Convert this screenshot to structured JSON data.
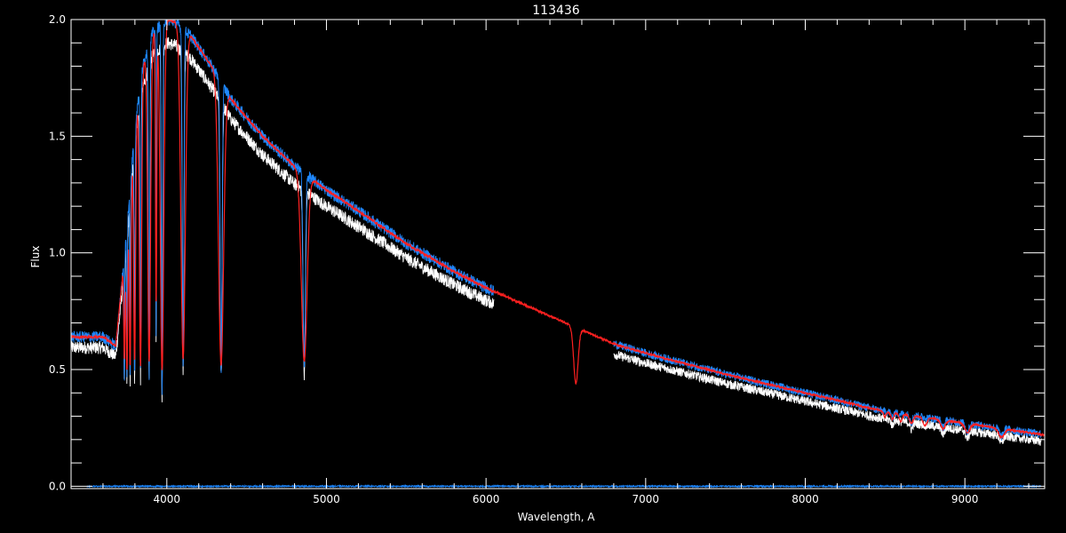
{
  "chart_data": {
    "type": "line",
    "title": "113436",
    "xlabel": "Wavelength, A",
    "ylabel": "Flux",
    "xlim": [
      3400,
      9500
    ],
    "ylim": [
      -0.01,
      2.0
    ],
    "x_ticks": [
      4000,
      5000,
      6000,
      7000,
      8000,
      9000
    ],
    "y_ticks": [
      0.0,
      0.5,
      1.0,
      1.5,
      2.0
    ],
    "x_tick_labels": [
      "4000",
      "5000",
      "6000",
      "7000",
      "8000",
      "9000"
    ],
    "y_tick_labels": [
      "0.0",
      "0.5",
      "1.0",
      "1.5",
      "2.0"
    ],
    "x_minor_step": 200,
    "y_minor_step": 0.1,
    "grid": false,
    "background_color": "#000000",
    "axis_color": "#ffffff",
    "continuum": {
      "x": [
        3400,
        3600,
        3680,
        3750,
        3800,
        3850,
        3900,
        3950,
        4000,
        4050,
        4100,
        4150,
        4200,
        4300,
        4400,
        4600,
        4800,
        5000,
        5200,
        5500,
        5800,
        6000,
        6200,
        6500,
        6800,
        7000,
        7500,
        8000,
        8500,
        9000,
        9500
      ],
      "y": [
        0.64,
        0.64,
        0.6,
        1.1,
        1.55,
        1.8,
        1.93,
        1.97,
        2.0,
        1.99,
        1.96,
        1.93,
        1.88,
        1.78,
        1.66,
        1.5,
        1.37,
        1.27,
        1.18,
        1.04,
        0.92,
        0.85,
        0.79,
        0.7,
        0.61,
        0.57,
        0.48,
        0.4,
        0.32,
        0.27,
        0.22
      ]
    },
    "series": [
      {
        "color": "#ff2020",
        "x_range": [
          3400,
          9500
        ],
        "noise": 0.004,
        "offset": 0.0,
        "absorption_lines": [
          {
            "center": 3734,
            "depth": 0.45,
            "width": 4
          },
          {
            "center": 3750,
            "depth": 0.55,
            "width": 5
          },
          {
            "center": 3770,
            "depth": 0.6,
            "width": 5
          },
          {
            "center": 3798,
            "depth": 0.65,
            "width": 6
          },
          {
            "center": 3835,
            "depth": 0.7,
            "width": 7
          },
          {
            "center": 3889,
            "depth": 0.72,
            "width": 9
          },
          {
            "center": 3933,
            "depth": 0.6,
            "width": 4
          },
          {
            "center": 3970,
            "depth": 0.75,
            "width": 11
          },
          {
            "center": 4102,
            "depth": 0.72,
            "width": 14
          },
          {
            "center": 4340,
            "depth": 0.7,
            "width": 16
          },
          {
            "center": 4861,
            "depth": 0.6,
            "width": 18
          },
          {
            "center": 6563,
            "depth": 0.35,
            "width": 14
          },
          {
            "center": 8498,
            "depth": 0.07,
            "width": 8
          },
          {
            "center": 8545,
            "depth": 0.09,
            "width": 9
          },
          {
            "center": 8598,
            "depth": 0.1,
            "width": 10
          },
          {
            "center": 8665,
            "depth": 0.11,
            "width": 11
          },
          {
            "center": 8750,
            "depth": 0.12,
            "width": 12
          },
          {
            "center": 8863,
            "depth": 0.13,
            "width": 14
          },
          {
            "center": 9015,
            "depth": 0.14,
            "width": 16
          },
          {
            "center": 9229,
            "depth": 0.15,
            "width": 18
          }
        ]
      },
      {
        "color": "#ffffff",
        "x_ranges": [
          [
            3400,
            6050
          ],
          [
            6800,
            9480
          ]
        ],
        "noise": 0.02,
        "offset": -0.02,
        "scale": 0.96,
        "absorption_lines": [
          {
            "center": 3734,
            "depth": 0.55,
            "width": 2
          },
          {
            "center": 3750,
            "depth": 0.6,
            "width": 2
          },
          {
            "center": 3770,
            "depth": 0.65,
            "width": 2
          },
          {
            "center": 3798,
            "depth": 0.7,
            "width": 3
          },
          {
            "center": 3835,
            "depth": 0.72,
            "width": 3
          },
          {
            "center": 3889,
            "depth": 0.75,
            "width": 4
          },
          {
            "center": 3933,
            "depth": 0.7,
            "width": 2
          },
          {
            "center": 3970,
            "depth": 0.8,
            "width": 4
          },
          {
            "center": 4102,
            "depth": 0.75,
            "width": 5
          },
          {
            "center": 4340,
            "depth": 0.72,
            "width": 6
          },
          {
            "center": 4861,
            "depth": 0.62,
            "width": 7
          },
          {
            "center": 8545,
            "depth": 0.08,
            "width": 6
          },
          {
            "center": 8665,
            "depth": 0.1,
            "width": 7
          },
          {
            "center": 8863,
            "depth": 0.12,
            "width": 9
          },
          {
            "center": 9015,
            "depth": 0.13,
            "width": 10
          },
          {
            "center": 9229,
            "depth": 0.14,
            "width": 11
          }
        ]
      },
      {
        "color": "#1e88ff",
        "x_ranges": [
          [
            3400,
            6050
          ],
          [
            6800,
            9480
          ]
        ],
        "noise": 0.018,
        "offset": 0.0,
        "scale": 1.0,
        "absorption_lines": [
          {
            "center": 3734,
            "depth": 0.55,
            "width": 2
          },
          {
            "center": 3750,
            "depth": 0.6,
            "width": 2
          },
          {
            "center": 3770,
            "depth": 0.65,
            "width": 2
          },
          {
            "center": 3798,
            "depth": 0.7,
            "width": 3
          },
          {
            "center": 3835,
            "depth": 0.72,
            "width": 3
          },
          {
            "center": 3889,
            "depth": 0.75,
            "width": 4
          },
          {
            "center": 3933,
            "depth": 0.7,
            "width": 2
          },
          {
            "center": 3970,
            "depth": 0.8,
            "width": 4
          },
          {
            "center": 4102,
            "depth": 0.75,
            "width": 5
          },
          {
            "center": 4340,
            "depth": 0.72,
            "width": 6
          },
          {
            "center": 4861,
            "depth": 0.62,
            "width": 7
          },
          {
            "center": 8545,
            "depth": 0.08,
            "width": 6
          },
          {
            "center": 8665,
            "depth": 0.1,
            "width": 7
          },
          {
            "center": 8863,
            "depth": 0.12,
            "width": 9
          },
          {
            "center": 9015,
            "depth": 0.13,
            "width": 10
          },
          {
            "center": 9229,
            "depth": 0.14,
            "width": 11
          }
        ]
      },
      {
        "color": "#1e88ff",
        "x_range": [
          3500,
          9480
        ],
        "constant": 0.0,
        "noise": 0.003
      }
    ]
  }
}
